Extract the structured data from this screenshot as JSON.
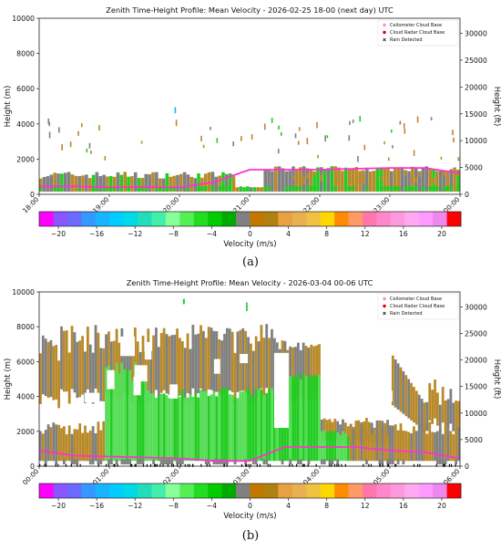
{
  "panels": [
    {
      "label": "(a)",
      "chart_data": {
        "type": "heatmap",
        "title": "Zenith Time-Height Profile: Mean Velocity - 2026-02-25 18-00 (next day) UTC",
        "ylabel": "Height (m)",
        "ylabel_right": "Height (ft)",
        "xlabel": "",
        "ylim": [
          0,
          10000
        ],
        "ylim_right": [
          0,
          32808
        ],
        "yticks": [
          0,
          2000,
          4000,
          6000,
          8000,
          10000
        ],
        "yticks_right": [
          0,
          5000,
          10000,
          15000,
          20000,
          25000,
          30000
        ],
        "xticks": [
          "18:00",
          "19:00",
          "20:00",
          "21:00",
          "22:00",
          "23:00",
          "00:00"
        ],
        "legend": [
          "Ceilometer Cloud Base",
          "Cloud Radar Cloud Base",
          "Rain Detected"
        ],
        "legend_position": "top-right",
        "grid": false,
        "colorbar": {
          "label": "Velocity (m/s)",
          "ticks": [
            "−20",
            "−16",
            "−12",
            "−8",
            "−4",
            "0",
            "4",
            "8",
            "12",
            "16",
            "20"
          ],
          "range": [
            -22,
            22
          ]
        },
        "ceilometer_cloud_base": {
          "x_hours": [
            0,
            0.5,
            1,
            1.5,
            2,
            2.5,
            3,
            3.5,
            4,
            4.5,
            5,
            5.5,
            6
          ],
          "height_m": [
            450,
            450,
            400,
            420,
            380,
            700,
            1400,
            1400,
            1400,
            1450,
            1500,
            1500,
            1200
          ]
        }
      }
    },
    {
      "label": "(b)",
      "chart_data": {
        "type": "heatmap",
        "title": "Zenith Time-Height Profile: Mean Velocity - 2026-03-04 00-06 UTC",
        "ylabel": "Height (m)",
        "ylabel_right": "Height (ft)",
        "xlabel": "",
        "ylim": [
          0,
          10000
        ],
        "ylim_right": [
          0,
          32808
        ],
        "yticks": [
          0,
          2000,
          4000,
          6000,
          8000,
          10000
        ],
        "yticks_right": [
          0,
          5000,
          10000,
          15000,
          20000,
          25000,
          30000
        ],
        "xticks": [
          "00:00",
          "01:00",
          "02:00",
          "03:00",
          "04:00",
          "05:00",
          "06:00"
        ],
        "legend": [
          "Ceilometer Cloud Base",
          "Cloud Radar Cloud Base",
          "Rain Detected"
        ],
        "legend_position": "top-right",
        "grid": false,
        "colorbar": {
          "label": "Velocity (m/s)",
          "ticks": [
            "−20",
            "−16",
            "−12",
            "−8",
            "−4",
            "0",
            "4",
            "8",
            "12",
            "16",
            "20"
          ],
          "range": [
            -22,
            22
          ]
        },
        "ceilometer_cloud_base": {
          "x_hours": [
            0,
            0.5,
            1,
            1.5,
            2,
            2.5,
            3,
            3.5,
            4,
            4.5,
            5,
            5.5,
            6
          ],
          "height_m": [
            900,
            600,
            550,
            500,
            450,
            300,
            300,
            1100,
            1100,
            1100,
            900,
            800,
            450
          ]
        }
      }
    }
  ],
  "colorbar_colors": [
    "#ff00ff",
    "#8a55ff",
    "#6a6aff",
    "#3399ff",
    "#1ab3ff",
    "#00ccff",
    "#00d9e6",
    "#22ddbb",
    "#44eeaa",
    "#88ff99",
    "#55ee55",
    "#22dd22",
    "#00cc00",
    "#00aa00",
    "#808080",
    "#c07800",
    "#b08010",
    "#e8a040",
    "#e8b050",
    "#f0c040",
    "#ffd700",
    "#ff8c00",
    "#ff9966",
    "#ff77aa",
    "#ff88cc",
    "#ff99dd",
    "#ffaaee",
    "#ff99ff",
    "#ee88ee",
    "#ff0000"
  ],
  "colors": {
    "grey": "#808080",
    "green": "#22cc22",
    "light_green": "#55dd55",
    "brown": "#b88a2a",
    "magenta": "#ff33cc",
    "rain": "#000000"
  }
}
